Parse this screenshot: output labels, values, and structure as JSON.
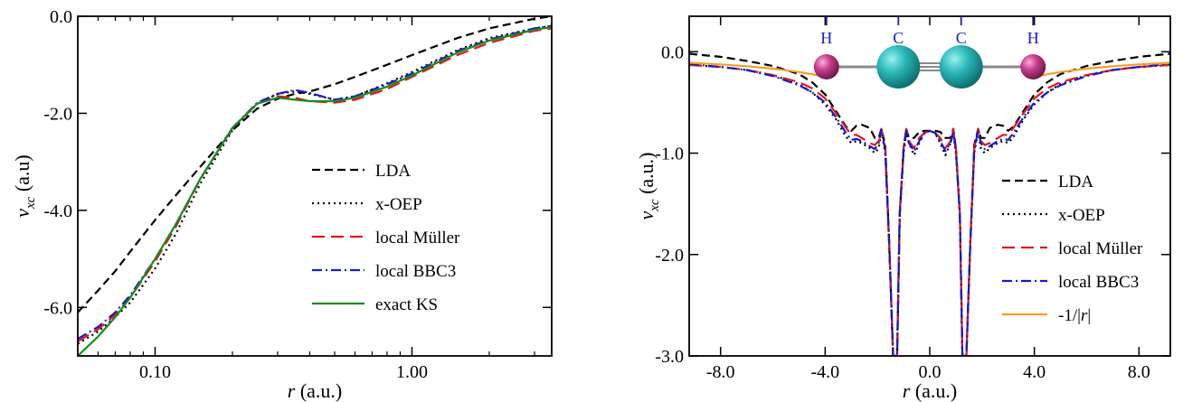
{
  "chart_data": [
    {
      "type": "line",
      "xscale": "log",
      "xlim": [
        0.05,
        3.5
      ],
      "ylim": [
        -7.0,
        0.0
      ],
      "xticks": [
        {
          "value": 0.1,
          "label": "0.10"
        },
        {
          "value": 1.0,
          "label": "1.00"
        }
      ],
      "yticks": [
        {
          "value": 0.0,
          "label": "0.0"
        },
        {
          "value": -2.0,
          "label": "-2.0"
        },
        {
          "value": -4.0,
          "label": "-4.0"
        },
        {
          "value": -6.0,
          "label": "-6.0"
        }
      ],
      "xlabel_italic": "r",
      "xlabel_rest": " (a.u.)",
      "ylabel_main": "v",
      "ylabel_sub": "xc",
      "ylabel_rest": " (a.u)",
      "legend": {
        "position": "center-right"
      },
      "series": [
        {
          "name": "LDA",
          "color": "#000000",
          "dash": "dashed",
          "x": [
            0.05,
            0.06,
            0.07,
            0.08,
            0.1,
            0.12,
            0.15,
            0.2,
            0.25,
            0.3,
            0.35,
            0.4,
            0.5,
            0.6,
            0.8,
            1.0,
            1.5,
            2.0,
            3.0,
            3.5
          ],
          "y": [
            -6.1,
            -5.65,
            -5.25,
            -4.85,
            -4.2,
            -3.7,
            -3.1,
            -2.35,
            -1.9,
            -1.7,
            -1.6,
            -1.55,
            -1.4,
            -1.25,
            -1.0,
            -0.8,
            -0.45,
            -0.25,
            -0.05,
            0.0
          ]
        },
        {
          "name": "x-OEP",
          "color": "#000000",
          "dash": "dotted",
          "x": [
            0.05,
            0.06,
            0.07,
            0.08,
            0.1,
            0.12,
            0.15,
            0.2,
            0.25,
            0.3,
            0.35,
            0.4,
            0.5,
            0.6,
            0.8,
            1.0,
            1.5,
            2.0,
            3.0,
            3.5
          ],
          "y": [
            -6.75,
            -6.5,
            -6.2,
            -5.9,
            -5.2,
            -4.5,
            -3.45,
            -2.35,
            -1.8,
            -1.6,
            -1.55,
            -1.6,
            -1.72,
            -1.65,
            -1.38,
            -1.15,
            -0.7,
            -0.45,
            -0.25,
            -0.2
          ]
        },
        {
          "name": "local Müller",
          "color": "#e01818",
          "dash": "longdash",
          "x": [
            0.05,
            0.06,
            0.07,
            0.08,
            0.1,
            0.12,
            0.15,
            0.2,
            0.25,
            0.3,
            0.35,
            0.4,
            0.5,
            0.6,
            0.8,
            1.0,
            1.5,
            2.0,
            3.0,
            3.5
          ],
          "y": [
            -6.7,
            -6.45,
            -6.15,
            -5.8,
            -5.05,
            -4.35,
            -3.35,
            -2.3,
            -1.8,
            -1.65,
            -1.68,
            -1.75,
            -1.78,
            -1.72,
            -1.5,
            -1.25,
            -0.8,
            -0.55,
            -0.3,
            -0.25
          ]
        },
        {
          "name": "local BBC3",
          "color": "#1818cc",
          "dash": "dashdot",
          "x": [
            0.05,
            0.06,
            0.07,
            0.08,
            0.1,
            0.12,
            0.15,
            0.2,
            0.25,
            0.3,
            0.35,
            0.4,
            0.5,
            0.6,
            0.8,
            1.0,
            1.5,
            2.0,
            3.0,
            3.5
          ],
          "y": [
            -6.65,
            -6.4,
            -6.1,
            -5.75,
            -5.0,
            -4.3,
            -3.35,
            -2.3,
            -1.78,
            -1.6,
            -1.52,
            -1.58,
            -1.72,
            -1.65,
            -1.4,
            -1.18,
            -0.72,
            -0.48,
            -0.25,
            -0.2
          ]
        },
        {
          "name": "exact KS",
          "color": "#1a8c1a",
          "dash": "solid",
          "x": [
            0.05,
            0.06,
            0.07,
            0.08,
            0.1,
            0.12,
            0.15,
            0.2,
            0.25,
            0.3,
            0.35,
            0.4,
            0.5,
            0.6,
            0.8,
            1.0,
            1.5,
            2.0,
            3.0,
            3.5
          ],
          "y": [
            -7.0,
            -6.6,
            -6.2,
            -5.8,
            -5.0,
            -4.3,
            -3.35,
            -2.3,
            -1.8,
            -1.68,
            -1.72,
            -1.75,
            -1.75,
            -1.68,
            -1.45,
            -1.22,
            -0.75,
            -0.5,
            -0.28,
            -0.22
          ]
        }
      ]
    },
    {
      "type": "line",
      "xlim": [
        -9.2,
        9.2
      ],
      "ylim": [
        -3.0,
        0.35
      ],
      "xticks": [
        {
          "value": -8.0,
          "label": "-8.0"
        },
        {
          "value": -4.0,
          "label": "-4.0"
        },
        {
          "value": 0.0,
          "label": "0.0"
        },
        {
          "value": 4.0,
          "label": "4.0"
        },
        {
          "value": 8.0,
          "label": "8.0"
        }
      ],
      "yticks": [
        {
          "value": 0.0,
          "label": "0.0"
        },
        {
          "value": -1.0,
          "label": "-1.0"
        },
        {
          "value": -2.0,
          "label": "-2.0"
        },
        {
          "value": -3.0,
          "label": "-3.0"
        }
      ],
      "xlabel_italic": "r",
      "xlabel_rest": " (a.u.)",
      "ylabel_main": "v",
      "ylabel_sub": "xc",
      "ylabel_rest": " (a.u.)",
      "legend": {
        "position": "bottom-right"
      },
      "molecule": {
        "atoms": [
          {
            "label": "H",
            "x": -3.95,
            "color": "#c83c8c",
            "size": "small"
          },
          {
            "label": "C",
            "x": -1.2,
            "color": "#2ab8b8",
            "size": "large"
          },
          {
            "label": "C",
            "x": 1.2,
            "color": "#2ab8b8",
            "size": "large"
          },
          {
            "label": "H",
            "x": 3.95,
            "color": "#c83c8c",
            "size": "small"
          }
        ]
      },
      "series": [
        {
          "name": "LDA",
          "color": "#000000",
          "dash": "dashed",
          "x": [
            -9.2,
            -8.0,
            -7.0,
            -6.0,
            -5.0,
            -4.5,
            -4.0,
            -3.6,
            -3.2,
            -3.0,
            -2.8,
            -2.6,
            -2.3,
            -2.1,
            -1.95,
            -1.85,
            -1.7,
            -1.55,
            -1.4,
            -1.25,
            -1.15,
            -1.0,
            -0.9,
            -0.8,
            -0.6,
            -0.4,
            -0.2,
            0.0,
            0.2,
            0.4,
            0.6,
            0.8,
            0.9,
            1.0,
            1.15,
            1.25,
            1.4,
            1.55,
            1.7,
            1.85,
            1.95,
            2.1,
            2.3,
            2.6,
            2.8,
            3.0,
            3.2,
            3.6,
            4.0,
            4.5,
            5.0,
            6.0,
            7.0,
            8.0,
            9.2
          ],
          "y": [
            -0.02,
            -0.05,
            -0.09,
            -0.14,
            -0.22,
            -0.3,
            -0.42,
            -0.58,
            -0.74,
            -0.78,
            -0.73,
            -0.72,
            -0.75,
            -0.85,
            -0.85,
            -0.76,
            -0.92,
            -1.9,
            -3.0,
            -3.0,
            -1.6,
            -0.95,
            -0.76,
            -0.85,
            -0.85,
            -0.79,
            -0.78,
            -0.78,
            -0.78,
            -0.79,
            -0.85,
            -0.85,
            -0.76,
            -0.95,
            -1.6,
            -3.0,
            -3.0,
            -1.9,
            -0.92,
            -0.76,
            -0.85,
            -0.85,
            -0.75,
            -0.72,
            -0.73,
            -0.78,
            -0.74,
            -0.58,
            -0.42,
            -0.3,
            -0.22,
            -0.14,
            -0.09,
            -0.05,
            -0.02
          ]
        },
        {
          "name": "x-OEP",
          "color": "#000000",
          "dash": "dotted",
          "x": [
            -9.2,
            -8.0,
            -7.0,
            -6.0,
            -5.0,
            -4.5,
            -4.0,
            -3.6,
            -3.2,
            -3.0,
            -2.8,
            -2.6,
            -2.3,
            -2.1,
            -1.95,
            -1.85,
            -1.7,
            -1.55,
            -1.4,
            -1.25,
            -1.15,
            -1.0,
            -0.9,
            -0.8,
            -0.6,
            -0.4,
            -0.2,
            0.0,
            0.2,
            0.4,
            0.6,
            0.8,
            0.9,
            1.0,
            1.15,
            1.25,
            1.4,
            1.55,
            1.7,
            1.85,
            1.95,
            2.1,
            2.3,
            2.6,
            2.8,
            3.0,
            3.2,
            3.6,
            4.0,
            4.5,
            5.0,
            6.0,
            7.0,
            8.0,
            9.2
          ],
          "y": [
            -0.13,
            -0.15,
            -0.18,
            -0.23,
            -0.32,
            -0.4,
            -0.52,
            -0.66,
            -0.84,
            -0.9,
            -0.88,
            -0.9,
            -0.95,
            -1.0,
            -0.95,
            -0.78,
            -1.0,
            -1.9,
            -3.0,
            -3.0,
            -1.6,
            -1.0,
            -0.8,
            -0.9,
            -1.02,
            -0.9,
            -0.8,
            -0.78,
            -0.8,
            -0.9,
            -1.02,
            -0.9,
            -0.8,
            -1.0,
            -1.6,
            -3.0,
            -3.0,
            -1.9,
            -1.0,
            -0.78,
            -0.95,
            -1.0,
            -0.95,
            -0.9,
            -0.88,
            -0.9,
            -0.84,
            -0.66,
            -0.52,
            -0.4,
            -0.32,
            -0.23,
            -0.18,
            -0.15,
            -0.13
          ]
        },
        {
          "name": "local Müller",
          "color": "#e01818",
          "dash": "longdash",
          "x": [
            -9.2,
            -8.0,
            -7.0,
            -6.0,
            -5.0,
            -4.5,
            -4.0,
            -3.6,
            -3.2,
            -3.0,
            -2.8,
            -2.6,
            -2.3,
            -2.1,
            -1.95,
            -1.85,
            -1.7,
            -1.55,
            -1.4,
            -1.25,
            -1.15,
            -1.0,
            -0.9,
            -0.8,
            -0.6,
            -0.4,
            -0.2,
            0.0,
            0.2,
            0.4,
            0.6,
            0.8,
            0.9,
            1.0,
            1.15,
            1.25,
            1.4,
            1.55,
            1.7,
            1.85,
            1.95,
            2.1,
            2.3,
            2.6,
            2.8,
            3.0,
            3.2,
            3.6,
            4.0,
            4.5,
            5.0,
            6.0,
            7.0,
            8.0,
            9.2
          ],
          "y": [
            -0.13,
            -0.15,
            -0.18,
            -0.23,
            -0.3,
            -0.36,
            -0.46,
            -0.6,
            -0.75,
            -0.82,
            -0.82,
            -0.85,
            -0.9,
            -0.92,
            -0.88,
            -0.76,
            -0.95,
            -1.9,
            -3.0,
            -3.0,
            -1.6,
            -0.95,
            -0.76,
            -0.88,
            -0.95,
            -0.85,
            -0.8,
            -0.78,
            -0.8,
            -0.85,
            -0.95,
            -0.88,
            -0.76,
            -0.95,
            -1.6,
            -3.0,
            -3.0,
            -1.9,
            -0.95,
            -0.76,
            -0.88,
            -0.92,
            -0.9,
            -0.85,
            -0.82,
            -0.82,
            -0.75,
            -0.6,
            -0.46,
            -0.36,
            -0.3,
            -0.23,
            -0.18,
            -0.15,
            -0.13
          ]
        },
        {
          "name": "local BBC3",
          "color": "#1818cc",
          "dash": "dashdot",
          "x": [
            -9.2,
            -8.0,
            -7.0,
            -6.0,
            -5.0,
            -4.5,
            -4.0,
            -3.6,
            -3.2,
            -3.0,
            -2.8,
            -2.6,
            -2.3,
            -2.1,
            -1.95,
            -1.85,
            -1.7,
            -1.55,
            -1.4,
            -1.25,
            -1.15,
            -1.0,
            -0.9,
            -0.8,
            -0.6,
            -0.4,
            -0.2,
            0.0,
            0.2,
            0.4,
            0.6,
            0.8,
            0.9,
            1.0,
            1.15,
            1.25,
            1.4,
            1.55,
            1.7,
            1.85,
            1.95,
            2.1,
            2.3,
            2.6,
            2.8,
            3.0,
            3.2,
            3.6,
            4.0,
            4.5,
            5.0,
            6.0,
            7.0,
            8.0,
            9.2
          ],
          "y": [
            -0.12,
            -0.15,
            -0.18,
            -0.24,
            -0.33,
            -0.4,
            -0.5,
            -0.64,
            -0.8,
            -0.87,
            -0.86,
            -0.88,
            -0.93,
            -0.96,
            -0.9,
            -0.77,
            -0.97,
            -1.9,
            -3.0,
            -3.0,
            -1.6,
            -0.97,
            -0.78,
            -0.9,
            -0.98,
            -0.88,
            -0.8,
            -0.78,
            -0.8,
            -0.88,
            -0.98,
            -0.9,
            -0.78,
            -0.97,
            -1.6,
            -3.0,
            -3.0,
            -1.9,
            -0.97,
            -0.77,
            -0.9,
            -0.96,
            -0.93,
            -0.88,
            -0.86,
            -0.87,
            -0.8,
            -0.64,
            -0.5,
            -0.4,
            -0.33,
            -0.24,
            -0.18,
            -0.15,
            -0.12
          ]
        },
        {
          "name": "-1/|r|",
          "name_pre": "-1/|",
          "name_italic": "r",
          "name_post": "|",
          "color": "#f0a020",
          "dash": "solid",
          "segments": [
            {
              "x": [
                -9.2,
                -8.0,
                -7.0,
                -6.0,
                -5.0,
                -4.5,
                -4.0
              ],
              "y": [
                -0.109,
                -0.125,
                -0.143,
                -0.167,
                -0.2,
                -0.222,
                -0.25
              ]
            },
            {
              "x": [
                4.0,
                4.5,
                5.0,
                6.0,
                7.0,
                8.0,
                9.2
              ],
              "y": [
                -0.25,
                -0.222,
                -0.2,
                -0.167,
                -0.143,
                -0.125,
                -0.109
              ]
            }
          ]
        }
      ]
    }
  ]
}
